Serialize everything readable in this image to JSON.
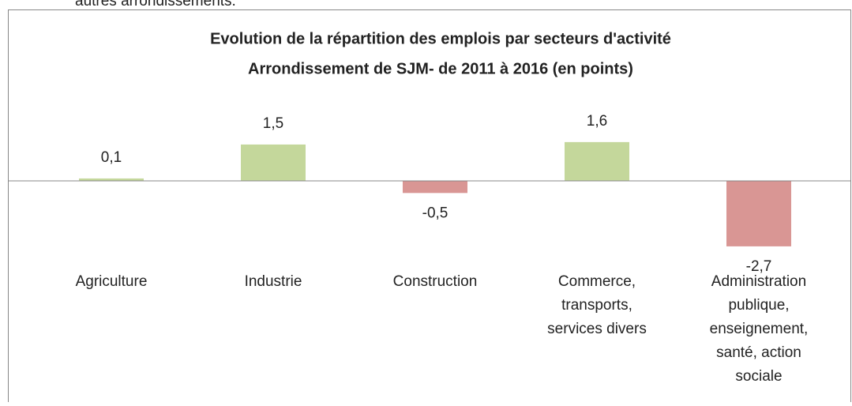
{
  "document": {
    "text_above": "autres arrondissements."
  },
  "chart_data": {
    "type": "bar",
    "title": [
      "Evolution de la répartition des emplois par secteurs d'activité",
      "Arrondissement de SJM- de 2011 à 2016 (en points)"
    ],
    "categories": [
      [
        "Agriculture"
      ],
      [
        "Industrie"
      ],
      [
        "Construction"
      ],
      [
        "Commerce,",
        "transports,",
        "services divers"
      ],
      [
        "Administration",
        "publique,",
        "enseignement,",
        "santé, action",
        "sociale"
      ]
    ],
    "values": [
      0.1,
      1.5,
      -0.5,
      1.6,
      -2.7
    ],
    "value_labels": [
      "0,1",
      "1,5",
      "-0,5",
      "1,6",
      "-2,7"
    ],
    "colors": [
      "#c4d79b",
      "#c4d79b",
      "#d99694",
      "#c4d79b",
      "#d99694"
    ]
  }
}
